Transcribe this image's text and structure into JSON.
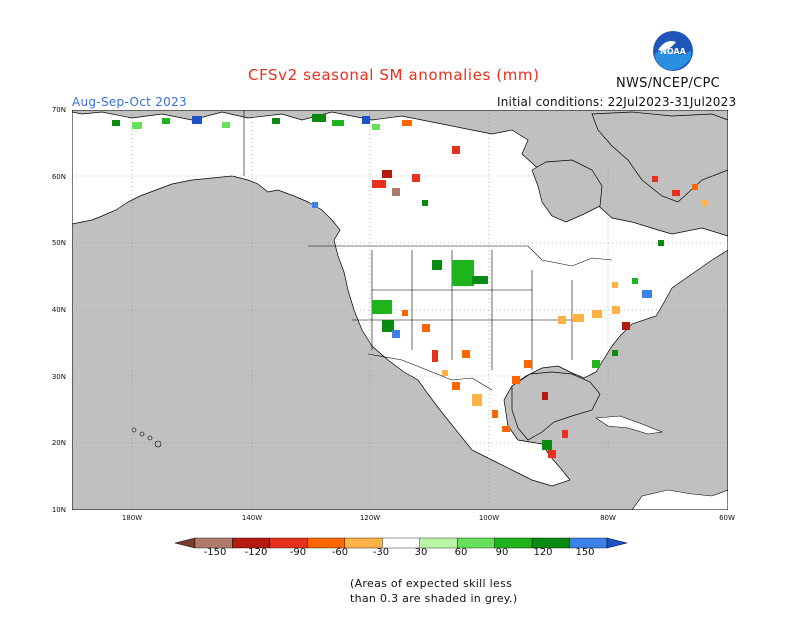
{
  "title": "CFSv2 seasonal SM anomalies (mm)",
  "agency": "NWS/NCEP/CPC",
  "logo_text": "NOAA",
  "season": "Aug-Sep-Oct 2023",
  "initial_conditions": "Initial conditions: 22Jul2023-31Jul2023",
  "map": {
    "lat_labels": [
      "70N",
      "60N",
      "50N",
      "40N",
      "30N",
      "20N",
      "10N"
    ],
    "lon_labels": [
      "180W",
      "140W",
      "120W",
      "100W",
      "80W",
      "60W"
    ],
    "extent": {
      "lon": [
        -190,
        -60
      ],
      "lat": [
        10,
        70
      ]
    },
    "land_color": "#ffffff",
    "masked_color": "#c0c0c0",
    "grid": "dotted"
  },
  "colorbar": {
    "labels": [
      "-150",
      "-120",
      "-90",
      "-60",
      "-30",
      "30",
      "60",
      "90",
      "120",
      "150"
    ],
    "colors": [
      "#7a3b2b",
      "#b07a6a",
      "#b41b10",
      "#e8301e",
      "#ff6600",
      "#ffb347",
      "#ffffff",
      "#b8f5a6",
      "#66e05a",
      "#1fb41c",
      "#0a8a10",
      "#3c80ea",
      "#1e50c8"
    ]
  },
  "skill_note": {
    "line1": "(Areas of expected skill less",
    "line2": "than 0.3 are shaded in grey.)"
  }
}
